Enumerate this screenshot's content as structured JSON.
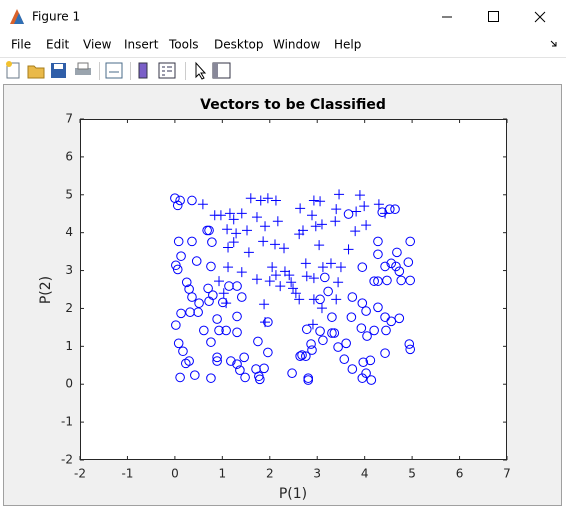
{
  "window": {
    "title": "Figure 1",
    "menu": [
      "File",
      "Edit",
      "View",
      "Insert",
      "Tools",
      "Desktop",
      "Window",
      "Help"
    ]
  },
  "chart_data": {
    "type": "scatter",
    "title": "Vectors to be Classified",
    "xlabel": "P(1)",
    "ylabel": "P(2)",
    "xlim": [
      -2,
      7
    ],
    "ylim": [
      -2,
      7
    ],
    "xticks": [
      -2,
      -1,
      0,
      1,
      2,
      3,
      4,
      5,
      6,
      7
    ],
    "yticks": [
      -2,
      -1,
      0,
      1,
      2,
      3,
      4,
      5,
      6,
      7
    ],
    "box": true,
    "grid": false,
    "series": [
      {
        "marker": "+",
        "color": "#0000ff",
        "x": [
          0.59,
          0.84,
          0.97,
          1.16,
          1.24,
          1.41,
          1.29,
          1.1,
          1.12,
          1.24,
          1.52,
          1.6,
          1.81,
          1.96,
          2.13,
          1.73,
          1.9,
          2.17,
          1.86,
          2.11,
          2.3,
          1.56,
          1.41,
          1.12,
          0.93,
          1.03,
          1.08,
          1.73,
          2.0,
          1.88,
          1.9,
          2.05,
          2.13,
          2.32,
          2.41,
          2.45,
          2.55,
          2.64,
          2.62,
          2.7,
          2.76,
          2.78,
          2.89,
          2.93,
          3.06,
          2.97,
          3.1,
          3.04,
          3.12,
          2.93,
          2.93,
          3.1,
          2.91,
          3.29,
          3.38,
          3.4,
          3.46,
          3.5,
          3.44,
          3.4,
          3.66,
          3.8,
          3.82,
          3.9,
          3.99,
          4.03,
          4.3,
          4.43,
          2.62,
          2.49,
          2.22
        ],
        "y": [
          4.75,
          4.46,
          4.46,
          4.51,
          4.35,
          4.51,
          3.98,
          4.09,
          3.61,
          3.75,
          4.06,
          4.91,
          4.85,
          4.91,
          4.85,
          4.41,
          4.17,
          4.3,
          3.77,
          3.69,
          3.59,
          3.48,
          2.96,
          3.09,
          2.72,
          2.4,
          2.14,
          2.77,
          2.72,
          2.11,
          1.64,
          3.09,
          2.88,
          2.98,
          2.88,
          2.69,
          2.4,
          4.64,
          3.96,
          4.06,
          3.19,
          2.85,
          4.46,
          4.85,
          4.83,
          4.17,
          4.22,
          3.67,
          3.09,
          2.8,
          2.24,
          2.01,
          1.58,
          3.19,
          4.3,
          4.62,
          5.01,
          3.09,
          2.69,
          2.24,
          3.56,
          4.04,
          4.56,
          4.99,
          4.7,
          4.2,
          4.75,
          4.51,
          2.24,
          2.53,
          2.59
        ]
      },
      {
        "marker": "o",
        "color": "#0000ff",
        "x": [
          0,
          0.06,
          0.11,
          0.36,
          0.08,
          0.13,
          0.02,
          0.06,
          0.36,
          0.46,
          0.25,
          0.3,
          0.36,
          0.51,
          0.49,
          0.13,
          0.32,
          0.02,
          0.08,
          0.17,
          0.3,
          0.23,
          0.11,
          0.42,
          0.68,
          0.72,
          0.78,
          0.76,
          0.7,
          0.8,
          1.01,
          0.72,
          0.61,
          0.89,
          0.93,
          0.76,
          0.89,
          0.89,
          0.76,
          1.08,
          1.31,
          1.31,
          1.41,
          1.31,
          1.14,
          1.18,
          1.31,
          1.46,
          1.37,
          1.48,
          1.75,
          1.71,
          1.77,
          1.88,
          1.96,
          1.79,
          1.96,
          2.47,
          2.64,
          2.76,
          2.87,
          2.89,
          2.81,
          2.81,
          3.12,
          3.36,
          3.31,
          3.44,
          3.61,
          3.57,
          3.74,
          3.95,
          4.03,
          4.14,
          3.97,
          4.12,
          4.05,
          3.93,
          4.2,
          3.72,
          3.95,
          3.74,
          4.03,
          4.43,
          4.56,
          4.73,
          4.45,
          4.28,
          4.43,
          4.94,
          4.96,
          3.95,
          4.2,
          4.28,
          4.28,
          4.28,
          4.43,
          4.56,
          4.68,
          4.73,
          4.77,
          4.92,
          4.96,
          4.96,
          4.47,
          4.66,
          4.37,
          4.53,
          4.64,
          3.66,
          3.16,
          3.23,
          3.06,
          3.31,
          3.06,
          2.78,
          2.68
        ],
        "y": [
          4.91,
          4.72,
          4.85,
          4.85,
          3.77,
          3.38,
          3.14,
          3.03,
          3.77,
          3.25,
          2.69,
          2.51,
          2.3,
          2.14,
          1.9,
          1.87,
          1.9,
          1.56,
          1.08,
          0.87,
          0.61,
          0.55,
          0.18,
          0.24,
          4.06,
          4.06,
          3.75,
          3.11,
          2.53,
          2.35,
          2.16,
          2.19,
          1.42,
          1.72,
          1.42,
          1.11,
          0.71,
          0.61,
          0.16,
          1.42,
          1.37,
          1.79,
          2.3,
          2.59,
          2.59,
          0.61,
          0.53,
          0.71,
          0.37,
          0.18,
          1.13,
          0.4,
          0.21,
          0.42,
          0.84,
          0.13,
          1.64,
          0.29,
          0.74,
          0.74,
          1.06,
          0.9,
          0.16,
          0.11,
          1.16,
          1.35,
          1.35,
          0.98,
          1.08,
          0.66,
          0.4,
          0.16,
          0.29,
          0.11,
          0.58,
          0.63,
          1.27,
          1.48,
          1.42,
          1.77,
          2.14,
          2.3,
          1.93,
          1.77,
          1.66,
          1.74,
          1.42,
          2.03,
          0.82,
          1.06,
          0.92,
          3.09,
          2.72,
          2.72,
          3.43,
          3.77,
          3.11,
          3.19,
          3.48,
          2.98,
          2.74,
          3.22,
          3.77,
          2.74,
          2.74,
          3.11,
          4.54,
          4.62,
          4.62,
          4.49,
          2.82,
          2.45,
          2.24,
          1.77,
          1.4,
          1.45,
          0.77
        ]
      }
    ]
  }
}
